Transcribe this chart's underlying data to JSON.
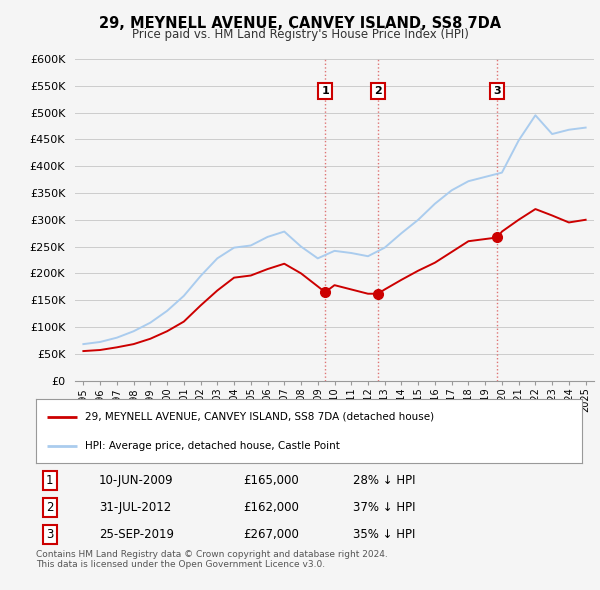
{
  "title": "29, MEYNELL AVENUE, CANVEY ISLAND, SS8 7DA",
  "subtitle": "Price paid vs. HM Land Registry's House Price Index (HPI)",
  "ylabel_ticks": [
    "£0",
    "£50K",
    "£100K",
    "£150K",
    "£200K",
    "£250K",
    "£300K",
    "£350K",
    "£400K",
    "£450K",
    "£500K",
    "£550K",
    "£600K"
  ],
  "ylim": [
    0,
    600000
  ],
  "ytick_vals": [
    0,
    50000,
    100000,
    150000,
    200000,
    250000,
    300000,
    350000,
    400000,
    450000,
    500000,
    550000,
    600000
  ],
  "background_color": "#f5f5f5",
  "grid_color": "#cccccc",
  "hpi_color": "#aaccee",
  "price_color": "#cc0000",
  "annotation_border_color": "#cc0000",
  "sale1": {
    "date_num": 2009.44,
    "price": 165000,
    "label": "1"
  },
  "sale2": {
    "date_num": 2012.58,
    "price": 162000,
    "label": "2"
  },
  "sale3": {
    "date_num": 2019.73,
    "price": 267000,
    "label": "3"
  },
  "vline_color": "#dd6666",
  "vline_style": ":",
  "footnote": "Contains HM Land Registry data © Crown copyright and database right 2024.\nThis data is licensed under the Open Government Licence v3.0.",
  "legend1": "29, MEYNELL AVENUE, CANVEY ISLAND, SS8 7DA (detached house)",
  "legend2": "HPI: Average price, detached house, Castle Point",
  "table_rows": [
    [
      "1",
      "10-JUN-2009",
      "£165,000",
      "28% ↓ HPI"
    ],
    [
      "2",
      "31-JUL-2012",
      "£162,000",
      "37% ↓ HPI"
    ],
    [
      "3",
      "25-SEP-2019",
      "£267,000",
      "35% ↓ HPI"
    ]
  ],
  "hpi_years": [
    1995,
    1996,
    1997,
    1998,
    1999,
    2000,
    2001,
    2002,
    2003,
    2004,
    2005,
    2006,
    2007,
    2008,
    2009,
    2010,
    2011,
    2012,
    2013,
    2014,
    2015,
    2016,
    2017,
    2018,
    2019,
    2020,
    2021,
    2022,
    2023,
    2024,
    2025
  ],
  "hpi_values": [
    68000,
    72000,
    80000,
    92000,
    108000,
    130000,
    158000,
    195000,
    228000,
    248000,
    252000,
    268000,
    278000,
    250000,
    228000,
    242000,
    238000,
    232000,
    248000,
    275000,
    300000,
    330000,
    355000,
    372000,
    380000,
    388000,
    448000,
    495000,
    460000,
    468000,
    472000
  ],
  "price_years": [
    1995.0,
    1996.0,
    1997.0,
    1998.0,
    1999.0,
    2000.0,
    2001.0,
    2002.0,
    2003.0,
    2004.0,
    2005.0,
    2006.0,
    2007.0,
    2008.0,
    2009.44,
    2009.45,
    2010.0,
    2011.0,
    2012.0,
    2012.58,
    2012.59,
    2013.0,
    2014.0,
    2015.0,
    2016.0,
    2017.0,
    2018.0,
    2019.73,
    2019.74,
    2020.0,
    2021.0,
    2022.0,
    2023.0,
    2024.0,
    2025.0
  ],
  "price_values": [
    55000,
    57000,
    62000,
    68000,
    78000,
    92000,
    110000,
    140000,
    168000,
    192000,
    196000,
    208000,
    218000,
    200000,
    165000,
    165000,
    178000,
    170000,
    162000,
    162000,
    162000,
    170000,
    188000,
    205000,
    220000,
    240000,
    260000,
    267000,
    267000,
    278000,
    300000,
    320000,
    308000,
    295000,
    300000
  ]
}
